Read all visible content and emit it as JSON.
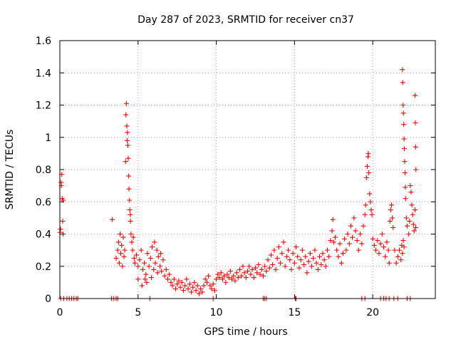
{
  "chart_data": {
    "type": "scatter",
    "title": "Day 287 of 2023, SRMTID for receiver cn37",
    "xlabel": "GPS time / hours",
    "ylabel": "SRMTID / TECUs",
    "xlim": [
      0,
      24
    ],
    "ylim": [
      0,
      1.6
    ],
    "xticks": [
      "0",
      "5",
      "10",
      "15",
      "20"
    ],
    "yticks": [
      "0",
      "0.2",
      "0.4",
      "0.6",
      "0.8",
      "1",
      "1.2",
      "1.4",
      "1.6"
    ],
    "grid": true,
    "marker": "+",
    "color": "#ff0000",
    "series": [
      {
        "name": "SRMTID",
        "points": [
          [
            0.0,
            0.41
          ],
          [
            0.05,
            0.43
          ],
          [
            0.08,
            0.72
          ],
          [
            0.1,
            0.7
          ],
          [
            0.12,
            0.77
          ],
          [
            0.15,
            0.62
          ],
          [
            0.18,
            0.48
          ],
          [
            0.2,
            0.4
          ],
          [
            0.22,
            0.61
          ],
          [
            0.05,
            0.0
          ],
          [
            0.25,
            0.0
          ],
          [
            0.45,
            0.0
          ],
          [
            0.6,
            0.0
          ],
          [
            0.75,
            0.0
          ],
          [
            0.9,
            0.0
          ],
          [
            1.05,
            0.0
          ],
          [
            1.15,
            0.0
          ],
          [
            3.3,
            0.0
          ],
          [
            3.45,
            0.0
          ],
          [
            3.6,
            0.0
          ],
          [
            3.7,
            0.0
          ],
          [
            3.35,
            0.49
          ],
          [
            3.6,
            0.25
          ],
          [
            3.7,
            0.3
          ],
          [
            3.75,
            0.35
          ],
          [
            3.8,
            0.22
          ],
          [
            3.85,
            0.4
          ],
          [
            3.9,
            0.28
          ],
          [
            3.95,
            0.33
          ],
          [
            4.0,
            0.2
          ],
          [
            4.05,
            0.38
          ],
          [
            4.1,
            0.26
          ],
          [
            4.15,
            0.3
          ],
          [
            4.2,
            0.85
          ],
          [
            4.22,
            1.14
          ],
          [
            4.25,
            1.21
          ],
          [
            4.28,
            1.07
          ],
          [
            4.3,
            0.98
          ],
          [
            4.32,
            1.03
          ],
          [
            4.35,
            0.95
          ],
          [
            4.37,
            0.87
          ],
          [
            4.4,
            0.76
          ],
          [
            4.42,
            0.68
          ],
          [
            4.45,
            0.61
          ],
          [
            4.47,
            0.55
          ],
          [
            4.5,
            0.52
          ],
          [
            4.52,
            0.48
          ],
          [
            4.55,
            0.4
          ],
          [
            4.6,
            0.35
          ],
          [
            4.65,
            0.3
          ],
          [
            4.7,
            0.38
          ],
          [
            4.75,
            0.25
          ],
          [
            4.8,
            0.22
          ],
          [
            4.9,
            0.27
          ],
          [
            5.0,
            0.2
          ],
          [
            5.1,
            0.24
          ],
          [
            5.2,
            0.3
          ],
          [
            5.3,
            0.18
          ],
          [
            5.4,
            0.22
          ],
          [
            5.5,
            0.15
          ],
          [
            5.6,
            0.28
          ],
          [
            5.7,
            0.2
          ],
          [
            5.8,
            0.25
          ],
          [
            5.9,
            0.32
          ],
          [
            6.0,
            0.18
          ],
          [
            6.1,
            0.22
          ],
          [
            6.2,
            0.3
          ],
          [
            6.3,
            0.26
          ],
          [
            6.4,
            0.2
          ],
          [
            6.5,
            0.17
          ],
          [
            6.6,
            0.24
          ],
          [
            6.7,
            0.14
          ],
          [
            5.45,
            0.12
          ],
          [
            5.55,
            0.1
          ],
          [
            5.85,
            0.13
          ],
          [
            6.05,
            0.35
          ],
          [
            6.25,
            0.16
          ],
          [
            6.45,
            0.28
          ],
          [
            5.0,
            0.12
          ],
          [
            5.25,
            0.08
          ],
          [
            5.75,
            0.0
          ],
          [
            6.8,
            0.18
          ],
          [
            6.9,
            0.12
          ],
          [
            7.0,
            0.15
          ],
          [
            7.1,
            0.1
          ],
          [
            7.2,
            0.08
          ],
          [
            7.3,
            0.12
          ],
          [
            7.4,
            0.06
          ],
          [
            7.5,
            0.09
          ],
          [
            7.6,
            0.11
          ],
          [
            7.7,
            0.07
          ],
          [
            7.8,
            0.1
          ],
          [
            7.9,
            0.05
          ],
          [
            8.0,
            0.08
          ],
          [
            8.1,
            0.12
          ],
          [
            8.2,
            0.06
          ],
          [
            8.3,
            0.09
          ],
          [
            8.4,
            0.04
          ],
          [
            8.5,
            0.07
          ],
          [
            8.6,
            0.1
          ],
          [
            8.7,
            0.05
          ],
          [
            8.8,
            0.08
          ],
          [
            8.9,
            0.03
          ],
          [
            9.0,
            0.06
          ],
          [
            9.1,
            0.04
          ],
          [
            9.2,
            0.08
          ],
          [
            9.3,
            0.12
          ],
          [
            9.4,
            0.1
          ],
          [
            9.5,
            0.14
          ],
          [
            9.6,
            0.08
          ],
          [
            9.7,
            0.06
          ],
          [
            9.8,
            0.09
          ],
          [
            9.9,
            0.05
          ],
          [
            10.0,
            0.12
          ],
          [
            10.1,
            0.15
          ],
          [
            10.2,
            0.13
          ],
          [
            10.3,
            0.16
          ],
          [
            10.4,
            0.12
          ],
          [
            10.5,
            0.14
          ],
          [
            10.6,
            0.1
          ],
          [
            10.7,
            0.15
          ],
          [
            10.8,
            0.13
          ],
          [
            10.9,
            0.17
          ],
          [
            11.0,
            0.12
          ],
          [
            11.1,
            0.14
          ],
          [
            11.2,
            0.11
          ],
          [
            11.3,
            0.16
          ],
          [
            11.4,
            0.13
          ],
          [
            11.5,
            0.18
          ],
          [
            11.6,
            0.14
          ],
          [
            11.7,
            0.2
          ],
          [
            11.8,
            0.16
          ],
          [
            11.9,
            0.13
          ],
          [
            12.0,
            0.17
          ],
          [
            12.1,
            0.2
          ],
          [
            12.2,
            0.15
          ],
          [
            12.3,
            0.18
          ],
          [
            12.4,
            0.13
          ],
          [
            12.5,
            0.19
          ],
          [
            12.6,
            0.16
          ],
          [
            12.7,
            0.21
          ],
          [
            12.8,
            0.15
          ],
          [
            12.9,
            0.18
          ],
          [
            13.0,
            0.14
          ],
          [
            13.1,
            0.2
          ],
          [
            13.2,
            0.17
          ],
          [
            13.3,
            0.24
          ],
          [
            13.4,
            0.19
          ],
          [
            13.5,
            0.27
          ],
          [
            13.6,
            0.21
          ],
          [
            13.7,
            0.3
          ],
          [
            13.8,
            0.18
          ],
          [
            13.9,
            0.25
          ],
          [
            14.0,
            0.32
          ],
          [
            14.1,
            0.22
          ],
          [
            14.2,
            0.28
          ],
          [
            14.3,
            0.35
          ],
          [
            14.4,
            0.2
          ],
          [
            14.5,
            0.26
          ],
          [
            14.6,
            0.3
          ],
          [
            14.7,
            0.24
          ],
          [
            14.8,
            0.18
          ],
          [
            14.9,
            0.28
          ],
          [
            15.0,
            0.22
          ],
          [
            15.1,
            0.32
          ],
          [
            15.2,
            0.26
          ],
          [
            15.3,
            0.19
          ],
          [
            15.4,
            0.24
          ],
          [
            15.5,
            0.3
          ],
          [
            15.6,
            0.21
          ],
          [
            15.7,
            0.26
          ],
          [
            15.8,
            0.16
          ],
          [
            15.9,
            0.23
          ],
          [
            16.0,
            0.28
          ],
          [
            16.1,
            0.2
          ],
          [
            16.2,
            0.25
          ],
          [
            16.3,
            0.3
          ],
          [
            16.4,
            0.22
          ],
          [
            16.5,
            0.18
          ],
          [
            16.6,
            0.26
          ],
          [
            16.7,
            0.21
          ],
          [
            16.8,
            0.28
          ],
          [
            16.9,
            0.24
          ],
          [
            17.0,
            0.2
          ],
          [
            17.1,
            0.3
          ],
          [
            17.2,
            0.26
          ],
          [
            17.3,
            0.36
          ],
          [
            17.4,
            0.42
          ],
          [
            17.45,
            0.49
          ],
          [
            17.5,
            0.35
          ],
          [
            17.6,
            0.38
          ],
          [
            17.7,
            0.3
          ],
          [
            17.8,
            0.26
          ],
          [
            17.9,
            0.34
          ],
          [
            18.0,
            0.22
          ],
          [
            18.1,
            0.28
          ],
          [
            18.2,
            0.37
          ],
          [
            18.3,
            0.3
          ],
          [
            18.4,
            0.4
          ],
          [
            18.5,
            0.34
          ],
          [
            18.6,
            0.45
          ],
          [
            18.7,
            0.38
          ],
          [
            18.8,
            0.5
          ],
          [
            18.9,
            0.42
          ],
          [
            19.0,
            0.36
          ],
          [
            19.1,
            0.3
          ],
          [
            19.2,
            0.4
          ],
          [
            19.3,
            0.34
          ],
          [
            19.4,
            0.45
          ],
          [
            19.5,
            0.52
          ],
          [
            19.55,
            0.58
          ],
          [
            19.6,
            0.75
          ],
          [
            19.65,
            0.82
          ],
          [
            19.7,
            0.88
          ],
          [
            19.72,
            0.9
          ],
          [
            19.75,
            0.78
          ],
          [
            19.8,
            0.65
          ],
          [
            19.85,
            0.6
          ],
          [
            19.9,
            0.55
          ],
          [
            19.95,
            0.52
          ],
          [
            20.0,
            0.37
          ],
          [
            20.1,
            0.33
          ],
          [
            20.2,
            0.3
          ],
          [
            20.3,
            0.36
          ],
          [
            20.4,
            0.28
          ],
          [
            20.5,
            0.34
          ],
          [
            20.6,
            0.4
          ],
          [
            20.7,
            0.32
          ],
          [
            20.8,
            0.26
          ],
          [
            20.9,
            0.35
          ],
          [
            21.0,
            0.3
          ],
          [
            21.05,
            0.22
          ],
          [
            21.1,
            0.48
          ],
          [
            21.15,
            0.55
          ],
          [
            21.2,
            0.58
          ],
          [
            21.25,
            0.5
          ],
          [
            21.3,
            0.44
          ],
          [
            21.4,
            0.3
          ],
          [
            21.5,
            0.22
          ],
          [
            21.6,
            0.26
          ],
          [
            21.7,
            0.3
          ],
          [
            21.8,
            0.24
          ],
          [
            21.9,
            0.28
          ],
          [
            22.0,
            0.32
          ],
          [
            21.85,
            0.33
          ],
          [
            21.95,
            0.36
          ],
          [
            21.9,
            1.42
          ],
          [
            21.92,
            1.34
          ],
          [
            21.94,
            1.2
          ],
          [
            21.96,
            1.15
          ],
          [
            21.98,
            1.08
          ],
          [
            22.0,
            0.99
          ],
          [
            22.02,
            0.93
          ],
          [
            22.04,
            0.85
          ],
          [
            22.06,
            0.78
          ],
          [
            22.08,
            0.69
          ],
          [
            22.1,
            0.62
          ],
          [
            22.15,
            0.5
          ],
          [
            22.2,
            0.45
          ],
          [
            22.3,
            0.4
          ],
          [
            22.35,
            0.48
          ],
          [
            22.4,
            0.7
          ],
          [
            22.45,
            0.66
          ],
          [
            22.5,
            0.58
          ],
          [
            22.55,
            0.52
          ],
          [
            22.6,
            0.46
          ],
          [
            22.65,
            0.42
          ],
          [
            22.7,
            1.26
          ],
          [
            22.72,
            1.09
          ],
          [
            22.74,
            0.94
          ],
          [
            22.76,
            0.8
          ],
          [
            22.7,
            0.55
          ],
          [
            22.75,
            0.44
          ],
          [
            19.3,
            0.0
          ],
          [
            19.5,
            0.0
          ],
          [
            20.5,
            0.0
          ],
          [
            20.7,
            0.0
          ],
          [
            20.85,
            0.0
          ],
          [
            21.05,
            0.0
          ],
          [
            21.35,
            0.0
          ],
          [
            21.6,
            0.0
          ],
          [
            22.2,
            0.0
          ],
          [
            22.4,
            0.0
          ],
          [
            13.0,
            0.0
          ],
          [
            13.1,
            0.0
          ],
          [
            13.2,
            0.0
          ],
          [
            15.05,
            0.0
          ],
          [
            15.1,
            0.0
          ],
          [
            9.8,
            0.0
          ]
        ]
      }
    ]
  }
}
